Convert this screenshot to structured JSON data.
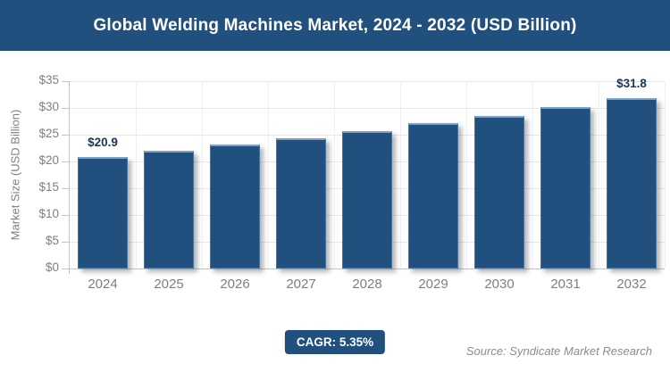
{
  "chart_data": {
    "type": "bar",
    "title": "Global Welding Machines Market, 2024 - 2032 (USD Billion)",
    "categories": [
      "2024",
      "2025",
      "2026",
      "2027",
      "2028",
      "2029",
      "2030",
      "2031",
      "2032"
    ],
    "values": [
      20.9,
      22.0,
      23.2,
      24.4,
      25.7,
      27.1,
      28.5,
      30.1,
      31.8
    ],
    "data_labels": [
      {
        "index": 0,
        "text": "$20.9"
      },
      {
        "index": 8,
        "text": "$31.8"
      }
    ],
    "xlabel": "",
    "ylabel": "Market Size (USD Billion)",
    "ylim": [
      0,
      35
    ],
    "ytick_labels": [
      "$0",
      "$5",
      "$10",
      "$15",
      "$20",
      "$25",
      "$30",
      "$35"
    ],
    "grid": true,
    "legend": "none",
    "bar_color": "#21507F",
    "annotations": {
      "cagr_badge": "CAGR: 5.35%",
      "source": "Source: Syndicate Market Research"
    }
  },
  "colors": {
    "primary": "#21507F",
    "bar_highlight": "#7FA2C4",
    "data_label": "#17375E",
    "axis_text": "#7F7F7F",
    "gridline": "#E6E6E6",
    "source_text": "#8C8C8C",
    "title_text": "#FFFFFF",
    "background": "#FFFFFF"
  }
}
